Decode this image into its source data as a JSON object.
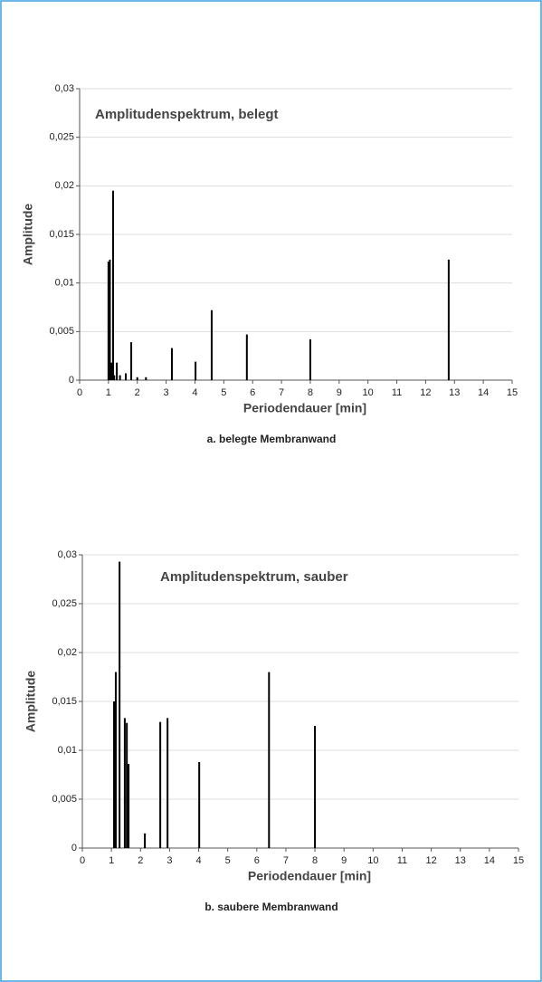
{
  "chart_data": [
    {
      "type": "bar",
      "title": "Amplitudenspektrum, belegt",
      "caption": "a. belegte Membranwand",
      "x_label": "Periodendauer [min]",
      "y_label": "Amplitude",
      "color": "#000000",
      "grid": true,
      "x": [
        1.0,
        1.05,
        1.1,
        1.16,
        1.2,
        1.29,
        1.4,
        1.6,
        1.79,
        2.0,
        2.3,
        3.2,
        4.02,
        4.58,
        5.8,
        8.0,
        12.8
      ],
      "values": [
        0.0122,
        0.0124,
        0.0018,
        0.0195,
        0.0005,
        0.0018,
        0.0005,
        0.0007,
        0.0039,
        0.0003,
        0.0003,
        0.0033,
        0.0019,
        0.0072,
        0.0047,
        0.0042,
        0.0124
      ],
      "xlim": [
        0,
        15
      ],
      "xticks": [
        0,
        1,
        2,
        3,
        4,
        5,
        6,
        7,
        8,
        9,
        10,
        11,
        12,
        13,
        14,
        15
      ],
      "ylim": [
        0,
        0.03
      ],
      "yticks": [
        0,
        {
          "value": 0.005,
          "label": "0,005"
        },
        {
          "value": 0.01,
          "label": "0,01"
        },
        {
          "value": 0.015,
          "label": "0,015"
        },
        {
          "value": 0.02,
          "label": "0,02"
        },
        {
          "value": 0.025,
          "label": "0,025"
        },
        {
          "value": 0.03,
          "label": "0,03"
        }
      ]
    },
    {
      "type": "bar",
      "title": "Amplitudenspektrum, sauber",
      "caption": "b. saubere Membranwand",
      "x_label": "Periodendauer [min]",
      "y_label": "Amplitude",
      "color": "#000000",
      "grid": true,
      "x": [
        1.09,
        1.15,
        1.28,
        1.46,
        1.53,
        1.59,
        2.15,
        2.68,
        2.93,
        4.02,
        6.42,
        8.0
      ],
      "values": [
        0.015,
        0.018,
        0.0293,
        0.0133,
        0.0128,
        0.0086,
        0.0015,
        0.0129,
        0.0133,
        0.0088,
        0.018,
        0.0125
      ],
      "xlim": [
        0,
        15
      ],
      "xticks": [
        0,
        1,
        2,
        3,
        4,
        5,
        6,
        7,
        8,
        9,
        10,
        11,
        12,
        13,
        14,
        15
      ],
      "ylim": [
        0,
        0.03
      ],
      "yticks": [
        0,
        {
          "value": 0.005,
          "label": "0,005"
        },
        {
          "value": 0.01,
          "label": "0,01"
        },
        {
          "value": 0.015,
          "label": "0,015"
        },
        {
          "value": 0.02,
          "label": "0,02"
        },
        {
          "value": 0.025,
          "label": "0,025"
        },
        {
          "value": 0.03,
          "label": "0,03"
        }
      ]
    }
  ]
}
